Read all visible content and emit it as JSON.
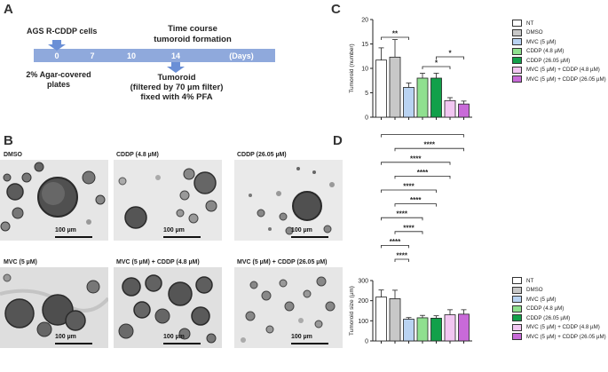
{
  "panels": {
    "a": "A",
    "b": "B",
    "c": "C",
    "d": "D"
  },
  "timeline": {
    "cell_line": "AGS R-CDDP  cells",
    "title_line1": "Time course",
    "title_line2": "tumoroid formation",
    "days": [
      "0",
      "7",
      "10",
      "14"
    ],
    "days_unit": "(Days)",
    "plates": [
      "2% Agar-covered",
      "plates"
    ],
    "result_title": "Tumoroid",
    "result_lines": [
      "(filtered by 70 µm filter)",
      "fixed with 4% PFA"
    ],
    "bar_color": "#8fa9dc",
    "arrow_color": "#6a8fd6"
  },
  "micrographs": [
    {
      "label": "DMSO",
      "scale": "100 µm"
    },
    {
      "label": "CDDP (4.8 µM)",
      "scale": "100 µm"
    },
    {
      "label": "CDDP (26.05 µM)",
      "scale": "100 µm"
    },
    {
      "label": "MVC (5 µM)",
      "scale": "100 µm"
    },
    {
      "label": "MVC (5 µM) + CDDP (4.8 µM)",
      "scale": "100 µm"
    },
    {
      "label": "MVC (5 µM) + CDDP (26.05 µM)",
      "scale": "100 µm"
    }
  ],
  "legend": [
    {
      "label": "NT",
      "color": "#ffffff"
    },
    {
      "label": "DMSO",
      "color": "#c8c8c8"
    },
    {
      "label": "MVC (5 µM)",
      "color": "#b9d3f2"
    },
    {
      "label": "CDDP (4.8 µM)",
      "color": "#8fe08f"
    },
    {
      "label": "CDDP (26.05 µM)",
      "color": "#12a04a"
    },
    {
      "label": "MVC (5 µM) + CDDP (4.8 µM)",
      "color": "#f2c6f2"
    },
    {
      "label": "MVC (5 µM) + CDDP (26.05 µM)",
      "color": "#c86ad8"
    }
  ],
  "chart_data": [
    {
      "type": "bar",
      "panel": "C",
      "ylabel": "Tumoroid (number)",
      "ylim": [
        0,
        20
      ],
      "yticks": [
        "0",
        "5",
        "10",
        "15",
        "20"
      ],
      "categories": [
        "NT",
        "DMSO",
        "MVC (5 µM)",
        "CDDP (4.8 µM)",
        "CDDP (26.05 µM)",
        "MVC (5 µM) + CDDP (4.8 µM)",
        "MVC (5 µM) + CDDP (26.05 µM)"
      ],
      "values": [
        11.7,
        12.3,
        6.1,
        8.0,
        8.0,
        3.4,
        2.7
      ],
      "errors": [
        2.5,
        3.6,
        0.9,
        1.0,
        1.0,
        0.6,
        0.6
      ],
      "significance": [
        {
          "from": 0,
          "to": 2,
          "label": "**"
        },
        {
          "from": 3,
          "to": 5,
          "label": "*"
        },
        {
          "from": 4,
          "to": 6,
          "label": "*"
        }
      ]
    },
    {
      "type": "bar",
      "panel": "D",
      "ylabel": "Tumoroid size (µm)",
      "ylim": [
        0,
        300
      ],
      "yticks": [
        "0",
        "100",
        "200",
        "300"
      ],
      "categories": [
        "NT",
        "DMSO",
        "MVC (5 µM)",
        "CDDP (4.8 µM)",
        "CDDP (26.05 µM)",
        "MVC (5 µM) + CDDP (4.8 µM)",
        "MVC (5 µM) + CDDP (26.05 µM)"
      ],
      "values": [
        218,
        210,
        108,
        115,
        113,
        130,
        133
      ],
      "errors": [
        35,
        42,
        8,
        12,
        12,
        25,
        22
      ],
      "significance": [
        {
          "from": 1,
          "to": 2,
          "label": "****"
        },
        {
          "from": 0,
          "to": 2,
          "label": "****"
        },
        {
          "from": 1,
          "to": 3,
          "label": "****"
        },
        {
          "from": 0,
          "to": 3,
          "label": "****"
        },
        {
          "from": 1,
          "to": 4,
          "label": "****"
        },
        {
          "from": 0,
          "to": 4,
          "label": "****"
        },
        {
          "from": 1,
          "to": 5,
          "label": "****"
        },
        {
          "from": 0,
          "to": 5,
          "label": "****"
        },
        {
          "from": 1,
          "to": 6,
          "label": "****"
        },
        {
          "from": 0,
          "to": 6,
          "label": "****"
        }
      ]
    }
  ]
}
